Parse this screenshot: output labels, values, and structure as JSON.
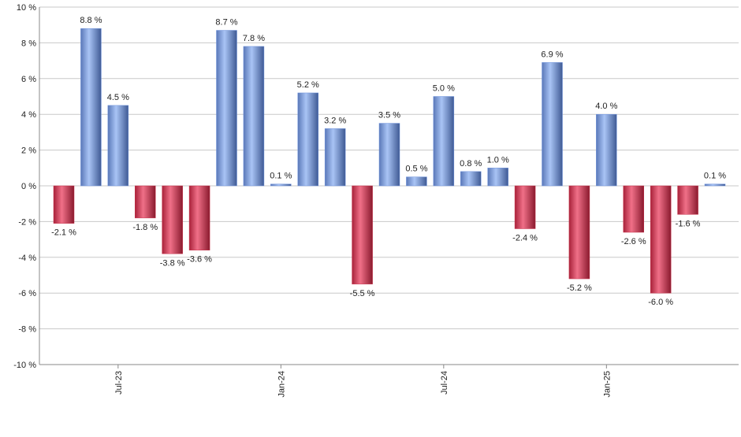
{
  "chart_data": {
    "type": "bar",
    "categories": [
      null,
      null,
      "Jul-23",
      null,
      null,
      null,
      null,
      null,
      "Jan-24",
      null,
      null,
      null,
      null,
      null,
      "Jul-24",
      null,
      null,
      null,
      null,
      null,
      "Jan-25",
      null,
      null,
      null,
      null
    ],
    "values": [
      -2.1,
      8.8,
      4.5,
      -1.8,
      -3.8,
      -3.6,
      8.7,
      7.8,
      0.1,
      5.2,
      3.2,
      -5.5,
      3.5,
      0.5,
      5.0,
      0.8,
      1.0,
      -2.4,
      6.9,
      -5.2,
      4.0,
      -2.6,
      -6.0,
      -1.6,
      0.1
    ],
    "value_labels": [
      "-2.1 %",
      "8.8 %",
      "4.5 %",
      "-1.8 %",
      "-3.8 %",
      "-3.6 %",
      "8.7 %",
      "7.8 %",
      "0.1 %",
      "5.2 %",
      "3.2 %",
      "-5.5 %",
      "3.5 %",
      "0.5 %",
      "5.0 %",
      "0.8 %",
      "1.0 %",
      "-2.4 %",
      "6.9 %",
      "-5.2 %",
      "4.0 %",
      "-2.6 %",
      "-6.0 %",
      "-1.6 %",
      "0.1 %"
    ],
    "positive_color": "#6f93dd",
    "negative_color": "#c8304a",
    "ylim": [
      -10,
      10
    ],
    "yticks": [
      {
        "value": -10,
        "label": "-10 %"
      },
      {
        "value": -8,
        "label": "-8 %"
      },
      {
        "value": -6,
        "label": "-6 %"
      },
      {
        "value": -4,
        "label": "-4 %"
      },
      {
        "value": -2,
        "label": "-2 %"
      },
      {
        "value": 0,
        "label": "0 %"
      },
      {
        "value": 2,
        "label": "2 %"
      },
      {
        "value": 4,
        "label": "4 %"
      },
      {
        "value": 6,
        "label": "6 %"
      },
      {
        "value": 8,
        "label": "8 %"
      },
      {
        "value": 10,
        "label": "10 %"
      }
    ],
    "grid": true
  }
}
